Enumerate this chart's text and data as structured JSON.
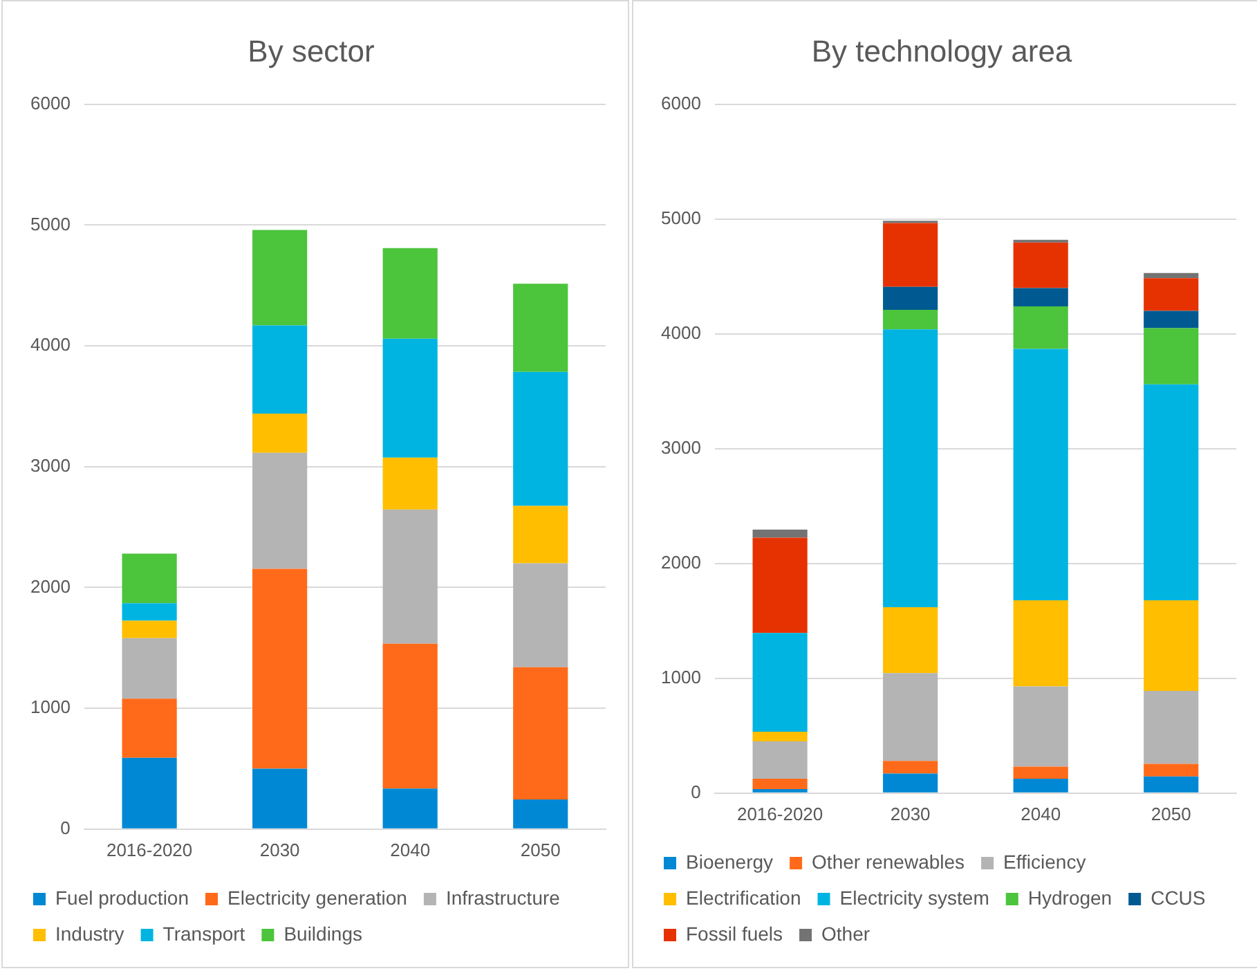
{
  "chart_data": [
    {
      "type": "bar",
      "stacked": true,
      "title": "By sector",
      "categories": [
        "2016-2020",
        "2030",
        "2040",
        "2050"
      ],
      "ylim": [
        0,
        6000
      ],
      "yticks": [
        0,
        1000,
        2000,
        3000,
        4000,
        5000,
        6000
      ],
      "grid": "y",
      "legend": "bottom",
      "series": [
        {
          "name": "Fuel production",
          "color": "#0088d4",
          "values": [
            590,
            500,
            335,
            245
          ]
        },
        {
          "name": "Electricity generation",
          "color": "#ff6a1a",
          "values": [
            490,
            1655,
            1200,
            1095
          ]
        },
        {
          "name": "Infrastructure",
          "color": "#b4b4b4",
          "values": [
            500,
            960,
            1110,
            860
          ]
        },
        {
          "name": "Industry",
          "color": "#ffbe00",
          "values": [
            145,
            325,
            430,
            475
          ]
        },
        {
          "name": "Transport",
          "color": "#00b4e1",
          "values": [
            145,
            730,
            985,
            1110
          ]
        },
        {
          "name": "Buildings",
          "color": "#4cc43c",
          "values": [
            410,
            790,
            750,
            730
          ]
        }
      ]
    },
    {
      "type": "bar",
      "stacked": true,
      "title": "By technology area",
      "categories": [
        "2016-2020",
        "2030",
        "2040",
        "2050"
      ],
      "ylim": [
        0,
        6000
      ],
      "yticks": [
        0,
        1000,
        2000,
        3000,
        4000,
        5000,
        6000
      ],
      "grid": "y",
      "legend": "bottom",
      "series": [
        {
          "name": "Bioenergy",
          "color": "#0088d4",
          "values": [
            35,
            170,
            125,
            145
          ]
        },
        {
          "name": "Other renewables",
          "color": "#ff6a1a",
          "values": [
            90,
            110,
            105,
            110
          ]
        },
        {
          "name": "Efficiency",
          "color": "#b4b4b4",
          "values": [
            325,
            765,
            700,
            635
          ]
        },
        {
          "name": "Electrification",
          "color": "#ffbe00",
          "values": [
            85,
            575,
            750,
            790
          ]
        },
        {
          "name": "Electricity system",
          "color": "#00b4e1",
          "values": [
            860,
            2420,
            2190,
            1880
          ]
        },
        {
          "name": "Hydrogen",
          "color": "#4cc43c",
          "values": [
            0,
            170,
            370,
            490
          ]
        },
        {
          "name": "CCUS",
          "color": "#005a91",
          "values": [
            0,
            200,
            160,
            150
          ]
        },
        {
          "name": "Fossil fuels",
          "color": "#e63200",
          "values": [
            830,
            555,
            395,
            285
          ]
        },
        {
          "name": "Other",
          "color": "#737373",
          "values": [
            70,
            20,
            25,
            45
          ]
        }
      ]
    }
  ]
}
